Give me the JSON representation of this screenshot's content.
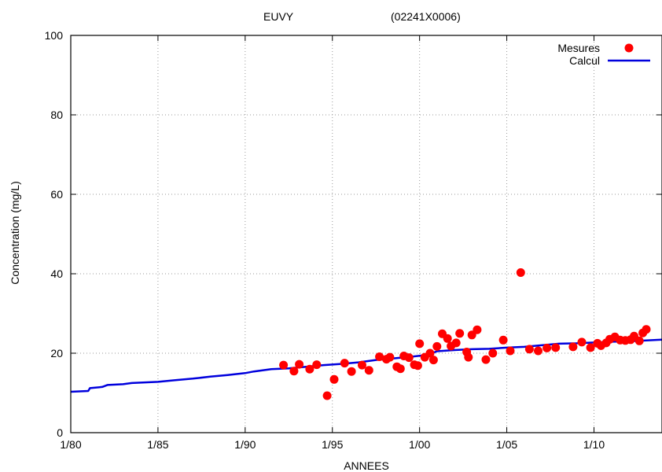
{
  "chart_data": {
    "type": "scatter",
    "title_left": "EUVY",
    "title_right": "(02241X0006)",
    "xlabel": "ANNEES",
    "ylabel": "Concentration (mg/L)",
    "xlim": [
      1980,
      2013.9
    ],
    "ylim": [
      0,
      100
    ],
    "x_ticks": [
      {
        "value": 1980,
        "label": "1/80"
      },
      {
        "value": 1985,
        "label": "1/85"
      },
      {
        "value": 1990,
        "label": "1/90"
      },
      {
        "value": 1995,
        "label": "1/95"
      },
      {
        "value": 2000,
        "label": "1/00"
      },
      {
        "value": 2005,
        "label": "1/05"
      },
      {
        "value": 2010,
        "label": "1/10"
      }
    ],
    "y_ticks": [
      0,
      20,
      40,
      60,
      80,
      100
    ],
    "grid": true,
    "legend_position": "top-right",
    "series": [
      {
        "name": "Mesures",
        "kind": "scatter",
        "color": "#ff0000",
        "points": [
          [
            1992.2,
            17.0
          ],
          [
            1992.8,
            15.5
          ],
          [
            1993.1,
            17.2
          ],
          [
            1993.7,
            16.0
          ],
          [
            1994.1,
            17.1
          ],
          [
            1994.7,
            9.3
          ],
          [
            1995.1,
            13.4
          ],
          [
            1995.7,
            17.5
          ],
          [
            1996.1,
            15.4
          ],
          [
            1996.7,
            17.0
          ],
          [
            1997.1,
            15.7
          ],
          [
            1997.7,
            19.1
          ],
          [
            1998.1,
            18.5
          ],
          [
            1998.3,
            19.0
          ],
          [
            1998.7,
            16.6
          ],
          [
            1998.9,
            16.1
          ],
          [
            1999.1,
            19.3
          ],
          [
            1999.4,
            18.9
          ],
          [
            1999.7,
            17.1
          ],
          [
            1999.9,
            16.9
          ],
          [
            2000.0,
            22.4
          ],
          [
            2000.3,
            19.0
          ],
          [
            2000.6,
            20.0
          ],
          [
            2000.8,
            18.3
          ],
          [
            2001.0,
            21.7
          ],
          [
            2001.3,
            24.9
          ],
          [
            2001.6,
            23.7
          ],
          [
            2001.8,
            21.8
          ],
          [
            2002.1,
            22.6
          ],
          [
            2002.3,
            25.0
          ],
          [
            2002.7,
            20.3
          ],
          [
            2002.8,
            19.0
          ],
          [
            2003.0,
            24.6
          ],
          [
            2003.3,
            25.9
          ],
          [
            2003.8,
            18.4
          ],
          [
            2004.2,
            20.0
          ],
          [
            2004.8,
            23.3
          ],
          [
            2005.2,
            20.6
          ],
          [
            2005.8,
            40.3
          ],
          [
            2006.3,
            21.0
          ],
          [
            2006.8,
            20.6
          ],
          [
            2007.3,
            21.3
          ],
          [
            2007.8,
            21.4
          ],
          [
            2008.8,
            21.6
          ],
          [
            2009.3,
            22.8
          ],
          [
            2009.8,
            21.4
          ],
          [
            2010.2,
            22.5
          ],
          [
            2010.4,
            21.9
          ],
          [
            2010.7,
            22.6
          ],
          [
            2010.9,
            23.5
          ],
          [
            2011.2,
            24.1
          ],
          [
            2011.5,
            23.3
          ],
          [
            2011.8,
            23.2
          ],
          [
            2012.1,
            23.4
          ],
          [
            2012.3,
            24.3
          ],
          [
            2012.6,
            23.1
          ],
          [
            2012.8,
            25.1
          ],
          [
            2013.0,
            26.0
          ]
        ]
      },
      {
        "name": "Calcul",
        "kind": "line",
        "color": "#0000dd",
        "points": [
          [
            1980.0,
            10.3
          ],
          [
            1981.0,
            10.5
          ],
          [
            1981.1,
            11.2
          ],
          [
            1981.8,
            11.5
          ],
          [
            1982.1,
            12.0
          ],
          [
            1983.0,
            12.2
          ],
          [
            1983.5,
            12.5
          ],
          [
            1985.0,
            12.8
          ],
          [
            1986.0,
            13.2
          ],
          [
            1987.0,
            13.6
          ],
          [
            1988.0,
            14.1
          ],
          [
            1989.0,
            14.5
          ],
          [
            1990.0,
            15.0
          ],
          [
            1990.5,
            15.4
          ],
          [
            1991.5,
            16.0
          ],
          [
            1992.5,
            16.2
          ],
          [
            1993.5,
            16.6
          ],
          [
            1994.5,
            17.0
          ],
          [
            1995.5,
            17.3
          ],
          [
            1996.5,
            17.7
          ],
          [
            1997.5,
            18.3
          ],
          [
            1998.5,
            18.7
          ],
          [
            1999.5,
            19.1
          ],
          [
            2000.5,
            19.6
          ],
          [
            2001.0,
            20.5
          ],
          [
            2002.0,
            20.8
          ],
          [
            2003.0,
            21.0
          ],
          [
            2004.0,
            21.1
          ],
          [
            2005.0,
            21.4
          ],
          [
            2006.0,
            21.6
          ],
          [
            2007.0,
            22.0
          ],
          [
            2008.0,
            22.4
          ],
          [
            2009.0,
            22.5
          ],
          [
            2010.0,
            22.7
          ],
          [
            2011.0,
            22.9
          ],
          [
            2012.0,
            23.0
          ],
          [
            2013.9,
            23.4
          ]
        ]
      }
    ]
  }
}
